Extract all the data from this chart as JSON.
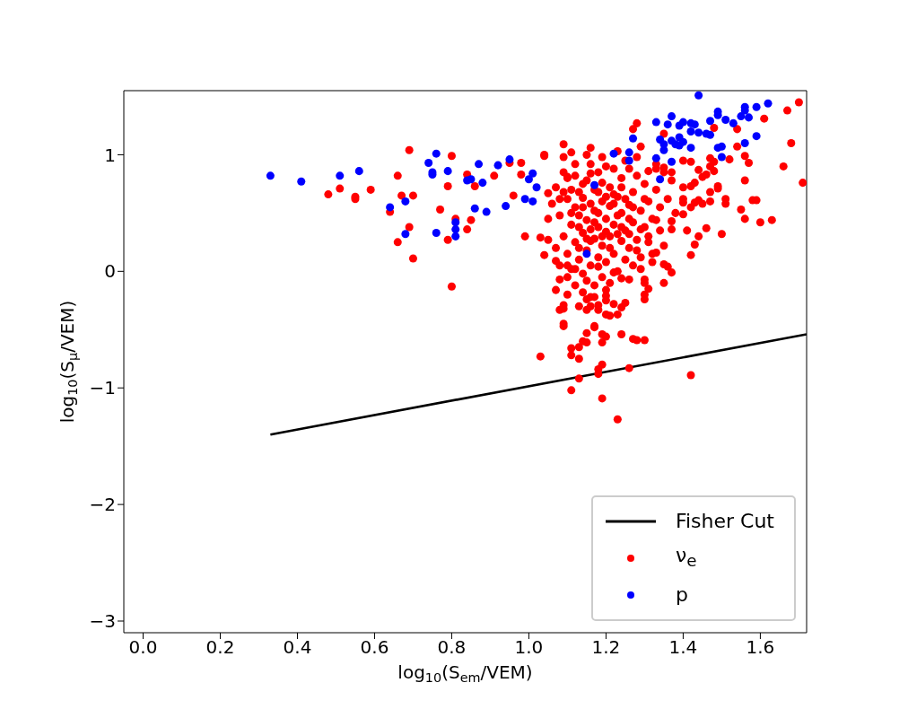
{
  "chart_data": {
    "type": "scatter",
    "xlabel": "log$_{10}$(S$_{em}$/VEM)",
    "ylabel": "log$_{10}$(S$_{μ}$/VEM)",
    "xlim": [
      -0.05,
      1.72
    ],
    "xticks": [
      {
        "value": 0,
        "label": "0.0"
      },
      {
        "value": 0.2,
        "label": "0.2"
      },
      {
        "value": 0.4,
        "label": "0.4"
      },
      {
        "value": 0.6,
        "label": "0.6"
      },
      {
        "value": 0.8,
        "label": "0.8"
      },
      {
        "value": 1,
        "label": "1.0"
      },
      {
        "value": 1.2,
        "label": "1.2"
      },
      {
        "value": 1.4,
        "label": "1.4"
      },
      {
        "value": 1.6,
        "label": "1.6"
      }
    ],
    "ylim": [
      -3.1,
      1.55
    ],
    "yticks": [
      {
        "value": -3,
        "label": "−3"
      },
      {
        "value": -2,
        "label": "−2"
      },
      {
        "value": -1,
        "label": "−1"
      },
      0,
      1
    ],
    "legend": "bottom right",
    "series": [
      {
        "name": "Fisher Cut",
        "type": "line",
        "color": "#000000",
        "line_style": "solid",
        "x": [
          0.33,
          1.72
        ],
        "values": [
          -1.4,
          -0.54
        ]
      },
      {
        "name": "ν$_{e}$",
        "marker": "circle",
        "color": "#ff0000",
        "x": [
          0.69,
          0.66,
          0.48,
          0.51,
          0.55,
          0.55,
          0.59,
          0.67,
          0.7,
          0.64,
          0.69,
          0.66,
          0.7,
          0.8,
          0.8,
          0.79,
          0.77,
          0.81,
          0.85,
          0.84,
          0.79,
          0.84,
          0.86,
          0.91,
          0.95,
          0.98,
          0.98,
          0.96,
          0.99,
          1.03,
          1.04,
          1.04,
          1.7,
          1.67,
          1.61,
          1.68,
          1.66,
          1.71,
          1.63,
          1.6,
          1.55,
          1.56,
          1.58,
          1.59,
          1.56,
          1.54,
          1.54,
          1.56,
          1.57,
          1.52,
          1.5,
          1.46,
          1.42,
          1.43,
          1.44,
          1.41,
          1.4,
          1.43,
          1.44,
          1.45,
          1.47,
          1.47,
          1.46,
          1.48,
          1.45,
          1.49,
          1.49,
          1.51,
          1.51,
          1.28,
          1.27,
          1.35,
          1.48,
          1.09,
          1.16,
          1.04,
          1.09,
          1.29,
          1.4,
          1.42,
          1.47,
          1.48,
          1.47,
          1.44,
          1.37,
          1.33,
          1.35,
          1.05,
          1.05,
          1.08,
          1.1,
          1.4,
          1.42,
          1.43,
          1.4,
          1.38,
          1.37,
          1.37,
          1.4,
          1.42,
          1.35,
          1.33,
          1.31,
          1.33,
          1.32,
          1.35,
          1.36,
          1.37,
          1.35,
          1.29,
          1.3,
          1.3,
          1.31,
          1.3,
          1.3,
          1.26,
          1.24,
          1.22,
          1.25,
          1.24,
          1.23,
          1.22,
          1.2,
          1.21,
          1.2,
          1.2,
          1.18,
          1.18,
          1.15,
          1.16,
          1.13,
          1.16,
          1.17,
          1.15,
          1.1,
          1.07,
          1.08,
          1.09,
          1.08,
          1.09,
          1.09,
          1.09,
          1.17,
          1.17,
          1.15,
          1.19,
          1.2,
          1.19,
          1.24,
          1.27,
          1.28,
          1.3,
          1.14,
          1.15,
          1.13,
          1.11,
          1.11,
          1.13,
          1.03,
          1.19,
          1.18,
          1.18,
          1.26,
          1.13,
          1.11,
          1.19,
          1.23,
          1.42,
          1.07,
          1.1,
          1.11,
          1.1,
          1.12,
          1.13,
          1.11,
          1.14,
          1.12,
          1.15,
          1.13,
          1.16,
          1.14,
          1.17,
          1.15,
          1.18,
          1.16,
          1.19,
          1.17,
          1.2,
          1.18,
          1.21,
          1.19,
          1.22,
          1.2,
          1.23,
          1.21,
          1.24,
          1.22,
          1.25,
          1.23,
          1.26,
          1.24,
          1.27,
          1.25,
          1.28,
          1.26,
          1.29,
          1.27,
          1.3,
          1.28,
          1.31,
          1.29,
          1.32,
          1.3,
          1.33,
          1.31,
          1.34,
          1.09,
          1.1,
          1.08,
          1.11,
          1.09,
          1.12,
          1.14,
          1.15,
          1.16,
          1.17,
          1.18,
          1.13,
          1.15,
          1.17,
          1.19,
          1.21,
          1.12,
          1.14,
          1.16,
          1.18,
          1.2,
          1.22,
          1.24,
          1.19,
          1.21,
          1.23,
          1.25,
          1.27,
          1.26,
          1.28,
          1.35,
          1.36,
          1.33,
          1.37,
          1.32,
          1.34,
          1.06,
          1.07,
          1.05,
          1.07,
          1.08,
          1.1,
          1.11,
          1.13,
          1.16,
          1.18,
          1.2,
          1.22,
          1.23,
          1.25,
          1.26,
          1.29,
          1.3,
          1.31,
          1.11,
          1.15,
          1.19,
          1.23,
          1.24,
          1.14,
          1.17,
          1.21,
          1.19,
          1.15,
          1.13,
          1.28,
          1.27,
          1.09,
          1.12,
          1.16,
          1.2,
          1.22,
          1.24,
          1.26,
          1.18,
          1.1,
          1.12,
          1.14,
          1.2
        ],
        "values": [
          1.04,
          0.82,
          0.66,
          0.71,
          0.64,
          0.62,
          0.7,
          0.65,
          0.65,
          0.51,
          0.38,
          0.25,
          0.11,
          -0.13,
          0.99,
          0.73,
          0.53,
          0.45,
          0.44,
          0.36,
          0.27,
          0.83,
          0.73,
          0.82,
          0.93,
          0.93,
          0.83,
          0.65,
          0.3,
          0.29,
          0.14,
          0.99,
          1.45,
          1.38,
          1.31,
          1.1,
          0.9,
          0.76,
          0.44,
          0.42,
          0.53,
          0.45,
          0.61,
          0.61,
          0.78,
          1.22,
          1.07,
          0.99,
          0.93,
          0.96,
          0.32,
          0.37,
          0.14,
          0.23,
          0.3,
          0.35,
          0.62,
          0.59,
          0.61,
          0.58,
          0.6,
          0.68,
          0.83,
          0.86,
          0.81,
          0.73,
          0.71,
          0.62,
          0.58,
          1.27,
          1.22,
          1.18,
          1.23,
          1.09,
          1.06,
          1.0,
          0.98,
          1.07,
          0.95,
          0.94,
          0.97,
          0.94,
          0.9,
          0.87,
          0.85,
          0.88,
          0.89,
          0.27,
          0.67,
          0.62,
          0.81,
          0.72,
          0.73,
          0.76,
          0.49,
          0.5,
          0.43,
          0.36,
          0.59,
          0.55,
          0.22,
          0.16,
          0.25,
          0.44,
          0.08,
          0.06,
          0.04,
          -0.01,
          -0.1,
          0.02,
          -0.07,
          -0.1,
          -0.15,
          -0.2,
          -0.24,
          -0.07,
          -0.06,
          -0.01,
          -0.27,
          -0.31,
          -0.37,
          -0.28,
          -0.37,
          -0.38,
          -0.21,
          -0.25,
          -0.29,
          -0.33,
          -0.33,
          -0.3,
          -0.3,
          -0.22,
          -0.22,
          -0.24,
          -0.2,
          -0.16,
          -0.07,
          -0.29,
          -0.33,
          -0.32,
          -0.45,
          -0.47,
          -0.47,
          -0.48,
          -0.53,
          -0.54,
          -0.56,
          -0.61,
          -0.54,
          -0.58,
          -0.59,
          -0.59,
          -0.6,
          -0.61,
          -0.65,
          -0.66,
          -0.72,
          -0.75,
          -0.73,
          -0.8,
          -0.84,
          -0.88,
          -0.83,
          -0.92,
          -1.02,
          -1.09,
          -1.27,
          -0.89,
          0.09,
          0.05,
          0.02,
          0.62,
          0.55,
          0.48,
          0.4,
          0.33,
          0.25,
          0.18,
          0.1,
          0.05,
          -0.02,
          0.7,
          0.78,
          0.85,
          0.92,
          0.6,
          0.52,
          0.45,
          0.38,
          0.3,
          0.22,
          0.15,
          0.08,
          0.0,
          0.72,
          0.8,
          0.88,
          0.95,
          0.64,
          0.57,
          0.5,
          0.42,
          0.35,
          0.27,
          0.2,
          0.12,
          0.68,
          0.75,
          0.82,
          0.6,
          0.52,
          0.45,
          0.38,
          0.7,
          0.3,
          0.55,
          0.3,
          0.15,
          0.48,
          0.7,
          0.85,
          0.92,
          0.63,
          0.44,
          0.36,
          0.28,
          0.12,
          0.2,
          -0.08,
          -0.12,
          -0.05,
          -0.1,
          0.02,
          0.75,
          0.58,
          0.5,
          0.34,
          0.4,
          0.26,
          0.76,
          0.56,
          0.48,
          0.62,
          0.55,
          0.88,
          0.98,
          0.85,
          0.62,
          0.92,
          0.78,
          0.15,
          0.35,
          0.58,
          0.72,
          0.45,
          0.2,
          0.05,
          0.8,
          0.5,
          0.38,
          0.26,
          0.68,
          0.9,
          0.66,
          0.32,
          0.1,
          0.45,
          0.36,
          0.62,
          0.86,
          1.02,
          1.0,
          0.98,
          1.03,
          0.72,
          0.55,
          0.42,
          0.2,
          0.3,
          0.28,
          0.68,
          0.18,
          0.05,
          0.68,
          0.82,
          0.84,
          0.64,
          0.58,
          0.38,
          0.32,
          0.04,
          -0.05,
          -0.12,
          -0.18,
          -0.16
        ]
      },
      {
        "name": "p",
        "marker": "circle",
        "color": "#0000ff",
        "x": [
          0.33,
          0.41,
          0.51,
          0.56,
          0.64,
          0.68,
          0.68,
          0.74,
          0.76,
          0.75,
          0.75,
          0.79,
          0.76,
          0.81,
          0.81,
          0.81,
          0.87,
          0.86,
          0.89,
          0.84,
          0.85,
          0.88,
          0.92,
          0.95,
          0.94,
          0.99,
          1.01,
          1.01,
          1.0,
          1.02,
          1.44,
          1.33,
          1.27,
          1.22,
          1.26,
          1.26,
          1.33,
          1.37,
          1.34,
          1.17,
          1.15,
          1.37,
          1.36,
          1.39,
          1.4,
          1.42,
          1.43,
          1.42,
          1.44,
          1.46,
          1.47,
          1.47,
          1.49,
          1.49,
          1.51,
          1.53,
          1.56,
          1.56,
          1.55,
          1.57,
          1.59,
          1.62,
          1.59,
          1.56,
          1.5,
          1.49,
          1.5,
          1.34,
          1.35,
          1.35,
          1.37,
          1.38,
          1.39,
          1.4,
          1.39,
          1.42
        ],
        "values": [
          0.82,
          0.77,
          0.82,
          0.86,
          0.55,
          0.6,
          0.32,
          0.93,
          1.01,
          0.85,
          0.83,
          0.86,
          0.33,
          0.42,
          0.36,
          0.3,
          0.92,
          0.54,
          0.51,
          0.78,
          0.79,
          0.76,
          0.91,
          0.96,
          0.56,
          0.62,
          0.6,
          0.84,
          0.79,
          0.72,
          1.51,
          1.28,
          1.14,
          1.01,
          1.02,
          0.95,
          0.97,
          0.94,
          0.79,
          0.74,
          0.15,
          1.33,
          1.26,
          1.25,
          1.28,
          1.27,
          1.26,
          1.2,
          1.19,
          1.18,
          1.17,
          1.29,
          1.37,
          1.34,
          1.3,
          1.27,
          1.41,
          1.38,
          1.33,
          1.32,
          1.41,
          1.44,
          1.16,
          1.1,
          0.98,
          1.06,
          1.07,
          1.13,
          1.09,
          1.04,
          1.12,
          1.09,
          1.15,
          1.11,
          1.08,
          1.06
        ]
      }
    ]
  }
}
